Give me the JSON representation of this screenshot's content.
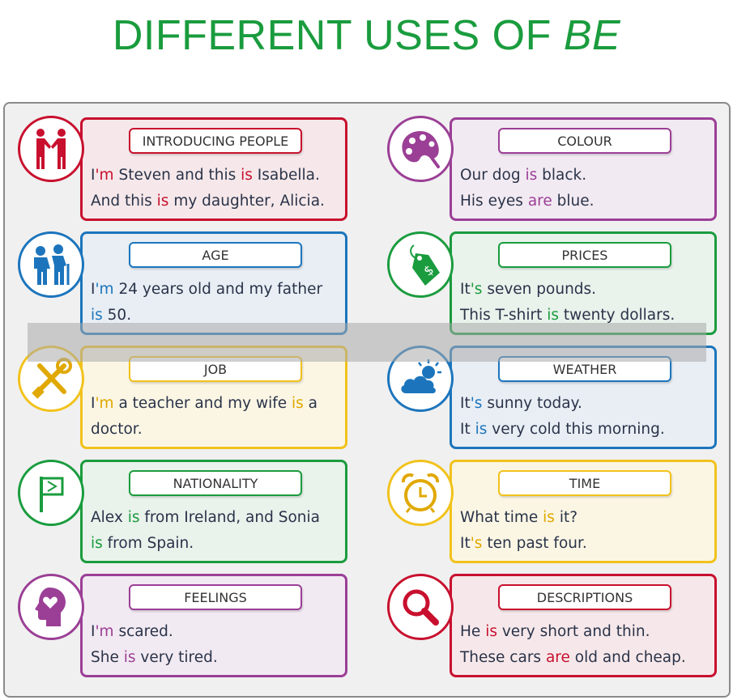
{
  "title": {
    "main": "DIFFERENT USES OF",
    "em": "BE"
  },
  "colors": {
    "red": "#c8102e",
    "purple": "#9b3f96",
    "blue": "#1c75bc",
    "green": "#1a9c3e",
    "yellow": "#f2c21b",
    "text": "#2a3349"
  },
  "cards": {
    "introducing": {
      "label": "INTRODUCING PEOPLE",
      "icon": "handshake-icon",
      "l1a": "I",
      "l1b": "'m",
      "l1c": " Steven and this ",
      "l1d": "is",
      "l1e": " Isabella.",
      "l2a": "And this ",
      "l2b": "is",
      "l2c": " my daughter, Alicia."
    },
    "colour": {
      "label": "COLOUR",
      "icon": "palette-icon",
      "l1a": "Our dog ",
      "l1b": "is",
      "l1c": " black.",
      "l2a": "His eyes ",
      "l2b": "are",
      "l2c": " blue."
    },
    "age": {
      "label": "AGE",
      "icon": "elderly-couple-icon",
      "l1a": "I",
      "l1b": "'m",
      "l1c": " 24 years old and my father",
      "l2a": "is",
      "l2b": " 50."
    },
    "prices": {
      "label": "PRICES",
      "icon": "price-tag-icon",
      "l1a": "It",
      "l1b": "'s",
      "l1c": " seven pounds.",
      "l2a": "This T-shirt ",
      "l2b": "is",
      "l2c": " twenty dollars."
    },
    "job": {
      "label": "JOB",
      "icon": "tools-icon",
      "l1a": "I",
      "l1b": "'m",
      "l1c": " a teacher and my wife ",
      "l1d": "is",
      "l1e": " a",
      "l2a": "doctor."
    },
    "weather": {
      "label": "WEATHER",
      "icon": "cloud-sun-icon",
      "l1a": "It",
      "l1b": "'s",
      "l1c": " sunny today.",
      "l2a": "It ",
      "l2b": "is",
      "l2c": " very cold this morning."
    },
    "nationality": {
      "label": "NATIONALITY",
      "icon": "flag-icon",
      "l1a": "Alex ",
      "l1b": "is",
      "l1c": " from Ireland, and Sonia",
      "l2a": "is",
      "l2b": " from Spain."
    },
    "time": {
      "label": "TIME",
      "icon": "alarm-clock-icon",
      "l1a": "What time ",
      "l1b": "is",
      "l1c": " it?",
      "l2a": "It",
      "l2b": "'s",
      "l2c": " ten past four."
    },
    "feelings": {
      "label": "FEELINGS",
      "icon": "head-heart-icon",
      "l1a": "I",
      "l1b": "'m",
      "l1c": " scared.",
      "l2a": "She ",
      "l2b": "is",
      "l2c": " very tired."
    },
    "descriptions": {
      "label": "DESCRIPTIONS",
      "icon": "magnifier-icon",
      "l1a": "He ",
      "l1b": "is",
      "l1c": " very short and thin.",
      "l2a": "These cars ",
      "l2b": "are",
      "l2c": " old and cheap."
    }
  }
}
